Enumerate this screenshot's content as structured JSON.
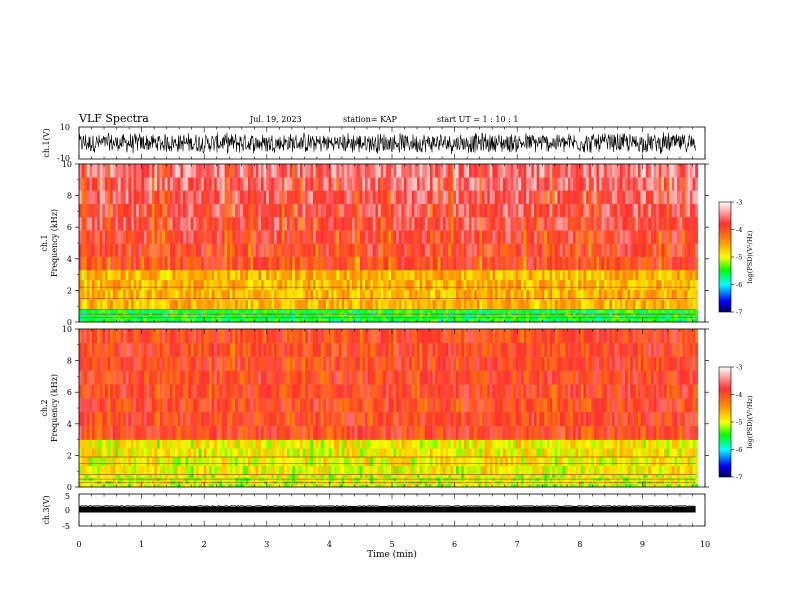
{
  "header": {
    "title": "VLF Spectra",
    "date": "Jul. 19, 2023",
    "station": "station= KAP",
    "start": "start UT =  1 : 10 : 1"
  },
  "colorbar": {
    "label": "log(PSD)(V²/Hz)",
    "ticks": [
      "-3",
      "-4",
      "-5",
      "-6",
      "-7"
    ],
    "stops": [
      "#ffffff",
      "#ff0000",
      "#ffff00",
      "#00ff00",
      "#00ffff",
      "#0000ff",
      "#000080"
    ]
  },
  "chart_data": [
    {
      "type": "line",
      "panel": "ch1-waveform",
      "ylabel": "ch.1(V)",
      "yticks": [
        "10",
        "-10"
      ],
      "ylim": [
        -10,
        10
      ],
      "xlim": [
        0,
        10
      ],
      "description_series": "broadband noise waveform, amplitude about ±7 V, ending near 9.85 min"
    },
    {
      "type": "heatmap",
      "panel": "ch1-spectrogram",
      "ylabel_top": "ch.1",
      "ylabel": "Frequency (kHz)",
      "yticks": [
        "0",
        "2",
        "4",
        "6",
        "8",
        "10"
      ],
      "ylim": [
        0,
        10
      ],
      "xlim": [
        0,
        10
      ],
      "zlabel": "log(PSD)(V²/Hz)",
      "zlim": [
        -7,
        -3
      ],
      "bands": [
        {
          "f0": 0,
          "f1": 0.8,
          "level": -5.5
        },
        {
          "f0": 0.8,
          "f1": 3.3,
          "level": -4.6
        },
        {
          "f0": 3.3,
          "f1": 10,
          "level": -3.9
        }
      ],
      "lines_khz": [
        0.3,
        0.5,
        0.8,
        1.5,
        2.2
      ]
    },
    {
      "type": "heatmap",
      "panel": "ch2-spectrogram",
      "ylabel_top": "ch.2",
      "ylabel": "Frequency (kHz)",
      "yticks": [
        "0",
        "2",
        "4",
        "6",
        "8",
        "10"
      ],
      "ylim": [
        0,
        10
      ],
      "xlim": [
        0,
        10
      ],
      "zlabel": "log(PSD)(V²/Hz)",
      "zlim": [
        -7,
        -3
      ],
      "bands": [
        {
          "f0": 0,
          "f1": 0.8,
          "level": -5.0
        },
        {
          "f0": 0.8,
          "f1": 3.0,
          "level": -4.9
        },
        {
          "f0": 3.0,
          "f1": 10,
          "level": -3.9
        }
      ],
      "lines_khz": [
        0.3,
        0.5,
        0.8,
        1.5,
        1.9
      ]
    },
    {
      "type": "line",
      "panel": "ch3-waveform",
      "ylabel": "ch.3(V)",
      "yticks": [
        "5",
        "0",
        "-5"
      ],
      "ylim": [
        -5,
        5
      ],
      "xlim": [
        0,
        10
      ],
      "level_v": 0,
      "description_series": "near-constant dense band around 0 V"
    }
  ],
  "xaxis": {
    "label": "Time (min)",
    "ticks": [
      "0",
      "1",
      "2",
      "3",
      "4",
      "5",
      "6",
      "7",
      "8",
      "9",
      "10"
    ],
    "data_end_min": 9.85
  }
}
